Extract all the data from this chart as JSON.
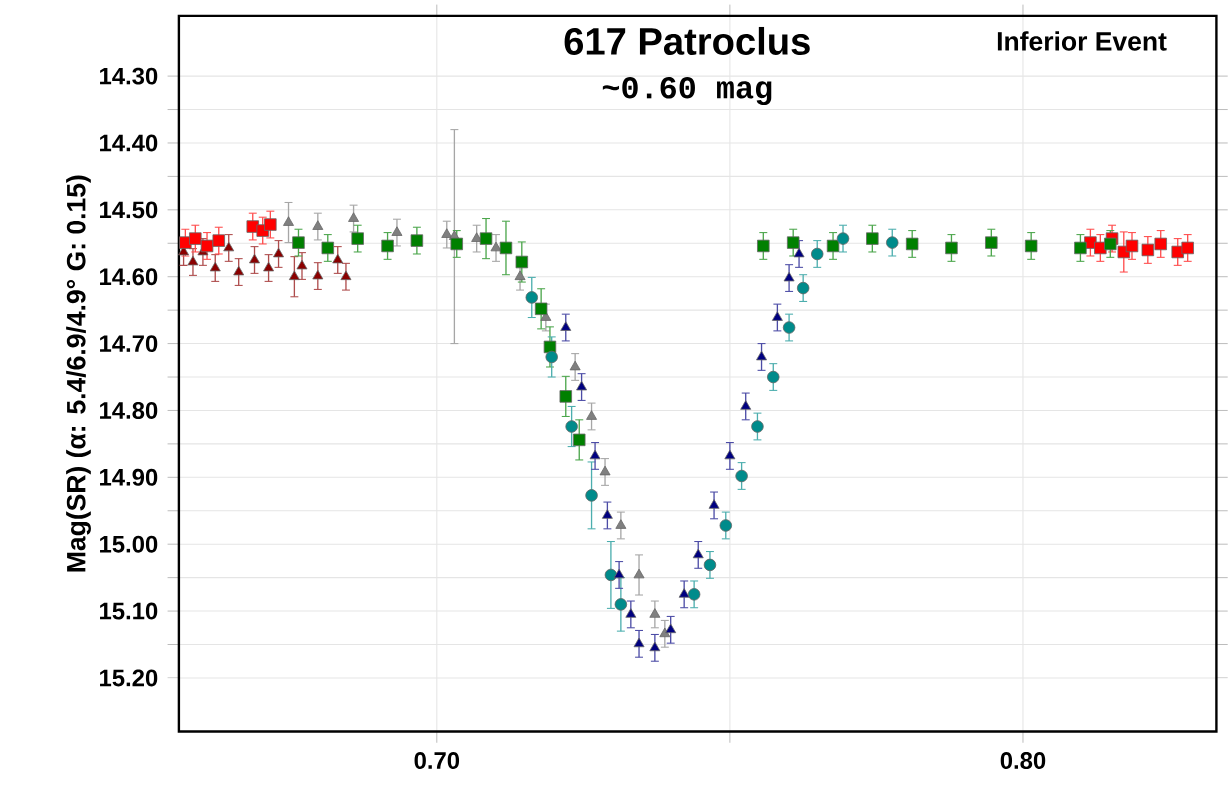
{
  "chart_data": {
    "type": "scatter",
    "title": "617 Patroclus",
    "subtitle": "~0.60 mag",
    "ylabel": "Mag(SR)   (α: 5.4/6.9/4.9°  G: 0.15)",
    "annotations": [
      "Inferior Event"
    ],
    "xlim": [
      0.656,
      0.833
    ],
    "ylim": [
      15.28,
      14.21
    ],
    "xticks": [
      {
        "value": 0.7,
        "label": "0.70"
      },
      {
        "value": 0.75,
        "label": null
      },
      {
        "value": 0.8,
        "label": "0.80"
      }
    ],
    "yticks": [
      {
        "value": 14.3,
        "label": "14.30"
      },
      {
        "value": 14.35,
        "label": null
      },
      {
        "value": 14.4,
        "label": "14.40"
      },
      {
        "value": 14.45,
        "label": null
      },
      {
        "value": 14.5,
        "label": "14.50"
      },
      {
        "value": 14.55,
        "label": null
      },
      {
        "value": 14.6,
        "label": "14.60"
      },
      {
        "value": 14.65,
        "label": null
      },
      {
        "value": 14.7,
        "label": "14.70"
      },
      {
        "value": 14.75,
        "label": null
      },
      {
        "value": 14.8,
        "label": "14.80"
      },
      {
        "value": 14.85,
        "label": null
      },
      {
        "value": 14.9,
        "label": "14.90"
      },
      {
        "value": 14.95,
        "label": null
      },
      {
        "value": 15.0,
        "label": "15.00"
      },
      {
        "value": 15.05,
        "label": null
      },
      {
        "value": 15.1,
        "label": "15.10"
      },
      {
        "value": 15.15,
        "label": null
      },
      {
        "value": 15.2,
        "label": "15.20"
      }
    ],
    "grid": true,
    "series": [
      {
        "color": "#8b0000",
        "marker": "triangle",
        "x": [
          0.6568,
          0.6584,
          0.6601,
          0.6622,
          0.6645,
          0.6662,
          0.6689,
          0.6713,
          0.673,
          0.6757,
          0.677,
          0.6797,
          0.6831,
          0.6845
        ],
        "values": [
          14.563,
          14.578,
          14.563,
          14.587,
          14.557,
          14.593,
          14.575,
          14.587,
          14.566,
          14.6,
          14.584,
          14.599,
          14.575,
          14.6
        ],
        "errors": [
          0.02,
          0.02,
          0.02,
          0.02,
          0.02,
          0.02,
          0.02,
          0.02,
          0.02,
          0.03,
          0.02,
          0.02,
          0.02,
          0.02
        ]
      },
      {
        "color": "#ff0000",
        "marker": "square",
        "x": [
          0.6571,
          0.6588,
          0.6608,
          0.6628,
          0.6686,
          0.6703,
          0.6716,
          0.8115,
          0.8132,
          0.8152,
          0.8172,
          0.8186,
          0.8213,
          0.8235,
          0.8264,
          0.8281
        ],
        "values": [
          14.549,
          14.543,
          14.554,
          14.546,
          14.525,
          14.531,
          14.522,
          14.549,
          14.557,
          14.543,
          14.563,
          14.554,
          14.56,
          14.551,
          14.563,
          14.557
        ],
        "errors": [
          0.02,
          0.02,
          0.02,
          0.02,
          0.02,
          0.02,
          0.02,
          0.02,
          0.02,
          0.02,
          0.03,
          0.02,
          0.02,
          0.02,
          0.02,
          0.02
        ]
      },
      {
        "color": "#808080",
        "marker": "triangle",
        "x": [
          0.6747,
          0.6797,
          0.6858,
          0.6932,
          0.7017,
          0.703,
          0.7068,
          0.7101,
          0.7142,
          0.7186,
          0.7236,
          0.7264,
          0.7287,
          0.7314,
          0.7345,
          0.7372,
          0.7389
        ],
        "values": [
          14.519,
          14.525,
          14.513,
          14.534,
          14.537,
          14.54,
          14.543,
          14.557,
          14.6,
          14.661,
          14.735,
          14.809,
          14.892,
          14.972,
          15.046,
          15.105,
          15.134
        ],
        "errors": [
          0.03,
          0.02,
          0.02,
          0.02,
          0.02,
          0.16,
          0.02,
          0.02,
          0.02,
          0.02,
          0.02,
          0.02,
          0.02,
          0.02,
          0.03,
          0.02,
          0.02
        ]
      },
      {
        "color": "#008000",
        "marker": "square",
        "x": [
          0.6764,
          0.6814,
          0.6865,
          0.6916,
          0.6966,
          0.7034,
          0.7084,
          0.7118,
          0.7145,
          0.7178,
          0.7193,
          0.722,
          0.7243,
          0.7557,
          0.7608,
          0.7676,
          0.7743,
          0.7811,
          0.7878,
          0.7946,
          0.8014,
          0.8098,
          0.8149
        ],
        "values": [
          14.549,
          14.557,
          14.543,
          14.554,
          14.546,
          14.551,
          14.543,
          14.557,
          14.578,
          14.648,
          14.705,
          14.779,
          14.844,
          14.554,
          14.549,
          14.554,
          14.543,
          14.551,
          14.557,
          14.549,
          14.554,
          14.557,
          14.551
        ],
        "errors": [
          0.02,
          0.02,
          0.02,
          0.02,
          0.02,
          0.02,
          0.03,
          0.04,
          0.03,
          0.03,
          0.03,
          0.03,
          0.03,
          0.02,
          0.02,
          0.02,
          0.02,
          0.02,
          0.02,
          0.02,
          0.02,
          0.02,
          0.02
        ]
      },
      {
        "color": "#008b8b",
        "marker": "circle",
        "x": [
          0.7162,
          0.7196,
          0.723,
          0.7264,
          0.7297,
          0.7314,
          0.7439,
          0.7466,
          0.7493,
          0.752,
          0.7547,
          0.7574,
          0.7601,
          0.7625,
          0.7649,
          0.7693,
          0.7777
        ],
        "values": [
          14.631,
          14.72,
          14.824,
          14.927,
          15.046,
          15.09,
          15.075,
          15.031,
          14.972,
          14.898,
          14.824,
          14.75,
          14.676,
          14.617,
          14.566,
          14.543,
          14.549
        ],
        "errors": [
          0.03,
          0.03,
          0.03,
          0.05,
          0.05,
          0.04,
          0.02,
          0.02,
          0.02,
          0.02,
          0.02,
          0.02,
          0.02,
          0.02,
          0.02,
          0.02,
          0.02
        ]
      },
      {
        "color": "#000080",
        "marker": "triangle",
        "x": [
          0.722,
          0.7247,
          0.727,
          0.7291,
          0.7311,
          0.7331,
          0.7345,
          0.7372,
          0.7399,
          0.7422,
          0.7446,
          0.7473,
          0.75,
          0.7527,
          0.7554,
          0.7581,
          0.7601,
          0.7618
        ],
        "values": [
          14.676,
          14.765,
          14.868,
          14.957,
          15.046,
          15.105,
          15.149,
          15.155,
          15.128,
          15.075,
          15.016,
          14.942,
          14.868,
          14.794,
          14.72,
          14.661,
          14.602,
          14.566
        ],
        "errors": [
          0.02,
          0.02,
          0.02,
          0.02,
          0.02,
          0.02,
          0.02,
          0.02,
          0.02,
          0.02,
          0.02,
          0.02,
          0.02,
          0.02,
          0.02,
          0.02,
          0.02,
          0.02
        ]
      }
    ]
  }
}
